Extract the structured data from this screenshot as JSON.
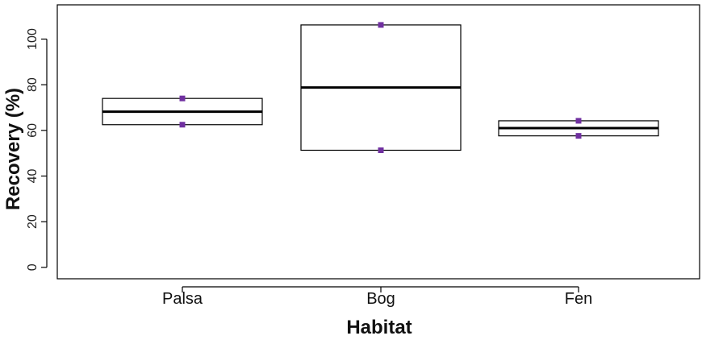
{
  "chart_data": {
    "type": "box",
    "xlabel": "Habitat",
    "ylabel": "Recovery (%)",
    "ylim": [
      -5,
      115
    ],
    "yticks": [
      0,
      20,
      40,
      60,
      80,
      100
    ],
    "categories": [
      "Palsa",
      "Bog",
      "Fen"
    ],
    "boxes": [
      {
        "category": "Palsa",
        "min": 62.5,
        "median": 68.2,
        "max": 74.0
      },
      {
        "category": "Bog",
        "min": 51.3,
        "median": 78.8,
        "max": 106.2
      },
      {
        "category": "Fen",
        "min": 57.6,
        "median": 61.0,
        "max": 64.2
      }
    ],
    "points": [
      {
        "category": "Palsa",
        "y": 74.0
      },
      {
        "category": "Palsa",
        "y": 62.5
      },
      {
        "category": "Bog",
        "y": 106.2
      },
      {
        "category": "Bog",
        "y": 51.3
      },
      {
        "category": "Fen",
        "y": 64.2
      },
      {
        "category": "Fen",
        "y": 57.6
      }
    ],
    "grid": false,
    "colors": {
      "points": "#7030a0",
      "box": "#000000",
      "median": "#000000"
    }
  }
}
